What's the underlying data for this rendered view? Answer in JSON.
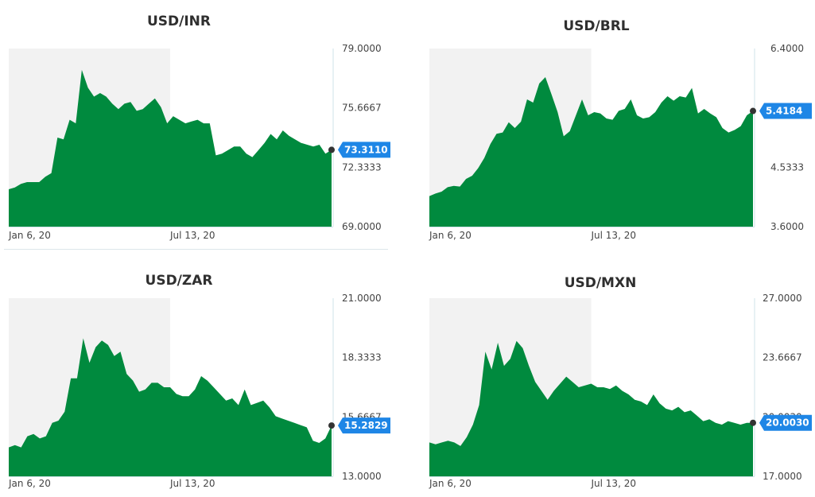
{
  "colors": {
    "area": "#008a3e",
    "shade": "#f2f2f2",
    "axis": "#cfe3ea",
    "tag": "#1e86e6",
    "dot": "#333333"
  },
  "chart_data": [
    {
      "type": "area",
      "title": "USD/INR",
      "x_tick_labels": [
        "Jan 6, 20",
        "Jul 13, 20"
      ],
      "y_tick_labels": [
        "79.0000",
        "75.6667",
        "72.3333",
        "69.0000"
      ],
      "ylim": [
        69.0,
        79.0
      ],
      "last_value_label": "73.3110",
      "values": [
        71.1,
        71.2,
        71.4,
        71.5,
        71.5,
        71.5,
        71.8,
        72.0,
        74.0,
        73.9,
        75.0,
        74.8,
        77.8,
        76.8,
        76.3,
        76.5,
        76.3,
        75.9,
        75.6,
        75.9,
        76.0,
        75.5,
        75.6,
        75.9,
        76.2,
        75.7,
        74.8,
        75.2,
        75.0,
        74.8,
        74.9,
        75.0,
        74.8,
        74.8,
        73.0,
        73.1,
        73.3,
        73.5,
        73.5,
        73.1,
        72.9,
        73.3,
        73.7,
        74.2,
        73.9,
        74.4,
        74.1,
        73.9,
        73.7,
        73.6,
        73.5,
        73.6,
        73.1,
        73.31
      ],
      "last_value": 73.311,
      "shade_fraction": 0.5
    },
    {
      "type": "area",
      "title": "USD/BRL",
      "x_tick_labels": [
        "Jan 6, 20",
        "Jul 13, 20"
      ],
      "y_tick_labels": [
        "6.4000",
        "5.4184",
        "4.5333",
        "3.6000"
      ],
      "ylim": [
        3.6,
        6.4
      ],
      "last_value_label": "5.4184",
      "values": [
        4.08,
        4.12,
        4.15,
        4.22,
        4.24,
        4.23,
        4.35,
        4.4,
        4.52,
        4.68,
        4.9,
        5.06,
        5.08,
        5.24,
        5.15,
        5.25,
        5.6,
        5.55,
        5.85,
        5.95,
        5.68,
        5.4,
        5.02,
        5.1,
        5.35,
        5.6,
        5.35,
        5.4,
        5.38,
        5.3,
        5.28,
        5.42,
        5.45,
        5.6,
        5.35,
        5.3,
        5.32,
        5.4,
        5.55,
        5.65,
        5.58,
        5.65,
        5.63,
        5.78,
        5.38,
        5.45,
        5.38,
        5.32,
        5.15,
        5.08,
        5.12,
        5.18,
        5.35,
        5.4184
      ],
      "last_value": 5.4184,
      "shade_fraction": 0.5
    },
    {
      "type": "area",
      "title": "USD/ZAR",
      "x_tick_labels": [
        "Jan 6, 20",
        "Jul 13, 20"
      ],
      "y_tick_labels": [
        "21.0000",
        "18.3333",
        "15.6667",
        "13.0000"
      ],
      "ylim": [
        13.0,
        21.0
      ],
      "last_value_label": "15.2829",
      "values": [
        14.3,
        14.4,
        14.3,
        14.8,
        14.9,
        14.7,
        14.8,
        15.4,
        15.5,
        15.9,
        17.4,
        17.4,
        19.2,
        18.1,
        18.8,
        19.1,
        18.9,
        18.4,
        18.6,
        17.6,
        17.3,
        16.8,
        16.9,
        17.2,
        17.2,
        17.0,
        17.0,
        16.7,
        16.6,
        16.6,
        16.9,
        17.5,
        17.3,
        17.0,
        16.7,
        16.4,
        16.5,
        16.2,
        16.9,
        16.2,
        16.3,
        16.4,
        16.1,
        15.7,
        15.6,
        15.5,
        15.4,
        15.3,
        15.2,
        14.6,
        14.5,
        14.7,
        15.2829
      ],
      "last_value": 15.2829,
      "shade_fraction": 0.5
    },
    {
      "type": "area",
      "title": "USD/MXN",
      "x_tick_labels": [
        "Jan 6, 20",
        "Jul 13, 20"
      ],
      "y_tick_labels": [
        "27.0000",
        "23.6667",
        "20.0030",
        "17.0000"
      ],
      "ylim": [
        17.0,
        27.0
      ],
      "last_value_label": "20.0030",
      "values": [
        18.9,
        18.8,
        18.9,
        19.0,
        18.9,
        18.7,
        19.2,
        19.9,
        21.0,
        24.0,
        23.0,
        24.5,
        23.2,
        23.6,
        24.6,
        24.2,
        23.2,
        22.3,
        21.8,
        21.3,
        21.8,
        22.2,
        22.6,
        22.3,
        22.0,
        22.1,
        22.2,
        22.0,
        22.0,
        21.9,
        22.1,
        21.8,
        21.6,
        21.3,
        21.2,
        21.0,
        21.6,
        21.1,
        20.8,
        20.7,
        20.9,
        20.6,
        20.7,
        20.4,
        20.1,
        20.2,
        20.0,
        19.9,
        20.1,
        20.0,
        19.9,
        20.0,
        20.003
      ],
      "last_value": 20.003,
      "shade_fraction": 0.5
    }
  ]
}
